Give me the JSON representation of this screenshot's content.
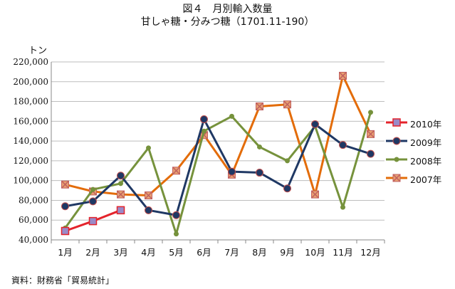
{
  "title": "図４　月別輸入数量",
  "subtitle": "甘しゃ糖・分みつ糖（1701.11-190）",
  "unit_label": "トン",
  "source": "資料：財務省「貿易統計」",
  "chart_data": {
    "type": "line",
    "title": "図４　月別輸入数量",
    "subtitle": "甘しゃ糖・分みつ糖（1701.11-190）",
    "ylabel": "トン",
    "xlabel": "",
    "categories": [
      "1月",
      "2月",
      "3月",
      "4月",
      "5月",
      "6月",
      "7月",
      "8月",
      "9月",
      "10月",
      "11月",
      "12月"
    ],
    "ylim": [
      40000,
      220000
    ],
    "yticks": [
      40000,
      60000,
      80000,
      100000,
      120000,
      140000,
      160000,
      180000,
      200000,
      220000
    ],
    "ytick_labels": [
      "40,000",
      "60,000",
      "80,000",
      "100,000",
      "120,000",
      "140,000",
      "160,000",
      "180,000",
      "200,000",
      "220,000"
    ],
    "grid": "horizontal",
    "legend_position": "right",
    "series": [
      {
        "name": "2010年",
        "color": "#e4232b",
        "marker": "square",
        "marker_color": "#9a8ac8",
        "values": [
          49000,
          59000,
          70000,
          null,
          null,
          null,
          null,
          null,
          null,
          null,
          null,
          null
        ]
      },
      {
        "name": "2009年",
        "color": "#1f3864",
        "marker": "circle",
        "marker_color": "#1f3864",
        "values": [
          74000,
          79000,
          105000,
          70000,
          65000,
          162000,
          109000,
          108000,
          92000,
          157000,
          136000,
          127000
        ]
      },
      {
        "name": "2008年",
        "color": "#76923c",
        "marker": "diamond",
        "marker_color": "#76923c",
        "values": [
          52000,
          91000,
          97000,
          133000,
          46000,
          150000,
          165000,
          134000,
          120000,
          155000,
          73000,
          169000
        ]
      },
      {
        "name": "2007年",
        "color": "#e36c09",
        "marker": "x",
        "marker_color": "#c06060",
        "values": [
          96000,
          89000,
          86000,
          85000,
          110000,
          146000,
          106000,
          175000,
          177000,
          86000,
          206000,
          147000
        ]
      }
    ]
  }
}
